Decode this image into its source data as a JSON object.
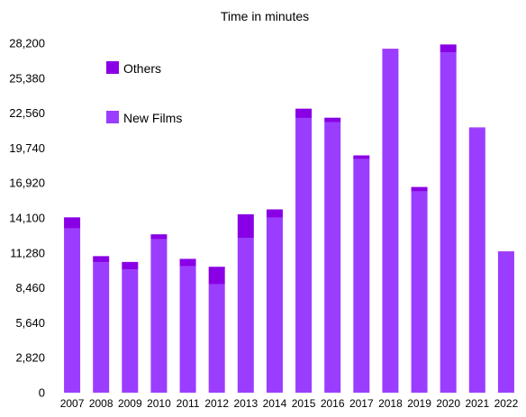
{
  "chart_data": {
    "type": "bar",
    "stacked": true,
    "title": "Time in minutes",
    "xlabel": "",
    "ylabel": "",
    "categories": [
      "2007",
      "2008",
      "2009",
      "2010",
      "2011",
      "2012",
      "2013",
      "2014",
      "2015",
      "2016",
      "2017",
      "2018",
      "2019",
      "2020",
      "2021",
      "2022"
    ],
    "series": [
      {
        "name": "New Films",
        "color": "#9b3dff",
        "values": [
          13250,
          10520,
          9950,
          12380,
          10200,
          8760,
          12500,
          14140,
          22170,
          21840,
          18850,
          27700,
          16250,
          27450,
          21350,
          11350
        ]
      },
      {
        "name": "Others",
        "color": "#8a00e6",
        "values": [
          900,
          500,
          600,
          400,
          600,
          1400,
          1900,
          650,
          750,
          350,
          300,
          50,
          350,
          650,
          50,
          50
        ]
      }
    ],
    "ylim": [
      0,
      28200
    ],
    "yticks": [
      "0",
      "2,820",
      "5,640",
      "8,460",
      "11,280",
      "14,100",
      "16,920",
      "19,740",
      "22,560",
      "25,380",
      "28,200"
    ],
    "ytick_values": [
      0,
      2820,
      5640,
      8460,
      11280,
      14100,
      16920,
      19740,
      22560,
      25380,
      28200
    ],
    "grid": false,
    "legend": [
      {
        "label": "Others",
        "color": "#8a00e6"
      },
      {
        "label": "New Films",
        "color": "#9b3dff"
      }
    ],
    "legend_position": "top-left"
  }
}
